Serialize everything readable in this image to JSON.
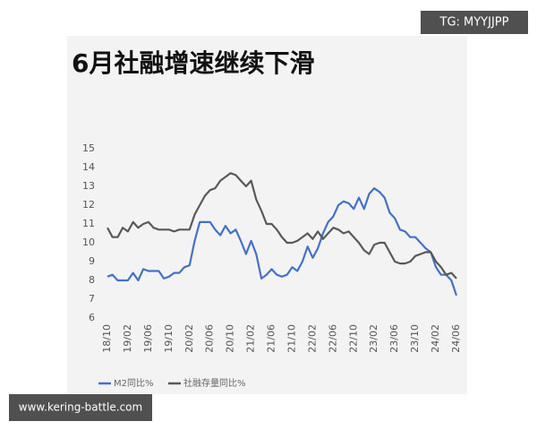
{
  "chart_data": {
    "type": "line",
    "title": "6月社融增速继续下滑",
    "categories": [
      "18/10",
      null,
      null,
      null,
      "19/02",
      null,
      null,
      null,
      "19/06",
      null,
      null,
      null,
      "19/10",
      null,
      null,
      null,
      "20/02",
      null,
      null,
      null,
      "20/06",
      null,
      null,
      null,
      "20/10",
      null,
      null,
      null,
      "21/02",
      null,
      null,
      null,
      "21/06",
      null,
      null,
      null,
      "21/10",
      null,
      null,
      null,
      "22/02",
      null,
      null,
      null,
      "22/06",
      null,
      null,
      null,
      "22/10",
      null,
      null,
      null,
      "23/02",
      null,
      null,
      null,
      "23/06",
      null,
      null,
      null,
      "23/10",
      null,
      null,
      null,
      "24/02",
      null,
      null,
      null,
      "24/06"
    ],
    "series": [
      {
        "name": "M2同比%",
        "color": "#4472c4",
        "values": [
          8.2,
          8.3,
          8.0,
          8.0,
          8.0,
          8.4,
          8.0,
          8.6,
          8.5,
          8.5,
          8.5,
          8.1,
          8.2,
          8.4,
          8.4,
          8.7,
          8.8,
          10.1,
          11.1,
          11.1,
          11.1,
          10.7,
          10.4,
          10.9,
          10.5,
          10.7,
          10.1,
          9.4,
          10.1,
          9.4,
          8.1,
          8.3,
          8.6,
          8.3,
          8.2,
          8.3,
          8.7,
          8.5,
          9.0,
          9.8,
          9.2,
          9.7,
          10.5,
          11.1,
          11.4,
          12.0,
          12.2,
          12.1,
          11.8,
          12.4,
          11.8,
          12.6,
          12.9,
          12.7,
          12.4,
          11.6,
          11.3,
          10.7,
          10.6,
          10.3,
          10.3,
          10.0,
          9.7,
          9.5,
          8.7,
          8.3,
          8.3,
          8.0,
          7.2
        ]
      },
      {
        "name": "社融存量同比%",
        "color": "#595959",
        "values": [
          10.8,
          10.3,
          10.3,
          10.8,
          10.6,
          11.1,
          10.8,
          11.0,
          11.1,
          10.8,
          10.7,
          10.7,
          10.7,
          10.6,
          10.7,
          10.7,
          10.7,
          11.5,
          12.0,
          12.5,
          12.8,
          12.9,
          13.3,
          13.5,
          13.7,
          13.6,
          13.3,
          13.0,
          13.3,
          12.3,
          11.7,
          11.0,
          11.0,
          10.7,
          10.3,
          10.0,
          10.0,
          10.1,
          10.3,
          10.5,
          10.2,
          10.6,
          10.2,
          10.5,
          10.8,
          10.7,
          10.5,
          10.6,
          10.3,
          10.0,
          9.6,
          9.4,
          9.9,
          10.0,
          10.0,
          9.5,
          9.0,
          8.9,
          8.9,
          9.0,
          9.3,
          9.4,
          9.5,
          9.5,
          9.0,
          8.7,
          8.3,
          8.4,
          8.1
        ]
      }
    ],
    "ylim": [
      6,
      15
    ],
    "yticks": [
      6,
      7,
      8,
      9,
      10,
      11,
      12,
      13,
      14,
      15
    ],
    "grid": false,
    "legend": "bottom"
  },
  "watermarks": {
    "top_right": "TG: MYYJJPP",
    "bottom_left": "www.kering-battle.com"
  }
}
